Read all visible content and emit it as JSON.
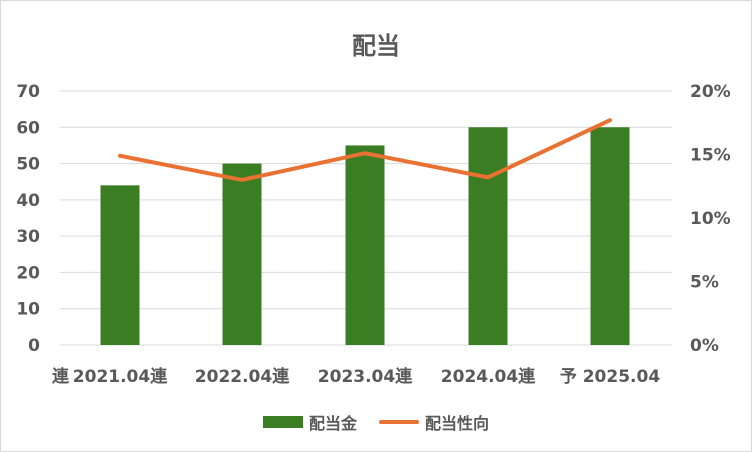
{
  "chart_data": {
    "type": "bar",
    "title": "配当",
    "categories": [
      "連",
      "2021.04連",
      "2022.04連",
      "2023.04連",
      "2024.04連",
      "予 2025.04"
    ],
    "series": [
      {
        "name": "配当金",
        "kind": "bar",
        "axis": "left",
        "values": [
          null,
          44,
          50,
          55,
          60,
          60
        ]
      },
      {
        "name": "配当性向",
        "kind": "line",
        "axis": "right",
        "values": [
          null,
          0.149,
          0.13,
          0.151,
          0.132,
          0.177
        ]
      }
    ],
    "ylim": [
      0,
      70
    ],
    "yticks": [
      0,
      10,
      20,
      30,
      40,
      50,
      60,
      70
    ],
    "y2lim": [
      0,
      0.2
    ],
    "y2ticks": [
      "0%",
      "5%",
      "10%",
      "15%",
      "20%"
    ],
    "grid": true,
    "legend_position": "bottom",
    "colors": {
      "bar": "#3a7d22",
      "line": "#e97132",
      "grid": "#d9d9d9",
      "text": "#595959"
    }
  }
}
